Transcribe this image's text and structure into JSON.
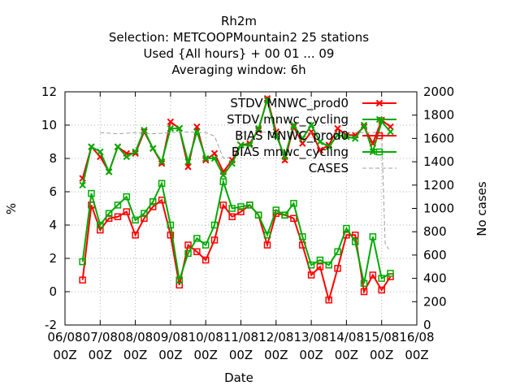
{
  "chart_data": {
    "type": "line",
    "title_lines": [
      "Rh2m",
      "Selection: METCOOPMountain2     25 stations",
      "Used {All hours} + 00 01 ... 09",
      "Averaging window:  6h"
    ],
    "xlabel": "Date",
    "ylabel": "%",
    "y2label": "No cases",
    "xlim": [
      0,
      10
    ],
    "ylim": [
      -2,
      12
    ],
    "y2lim": [
      0,
      2000
    ],
    "x_ticks": [
      {
        "v": 0,
        "l1": "06/08",
        "l2": "00Z"
      },
      {
        "v": 1,
        "l1": "07/08",
        "l2": "00Z"
      },
      {
        "v": 2,
        "l1": "08/08",
        "l2": "00Z"
      },
      {
        "v": 3,
        "l1": "09/08",
        "l2": "00Z"
      },
      {
        "v": 4,
        "l1": "10/08",
        "l2": "00Z"
      },
      {
        "v": 5,
        "l1": "11/08",
        "l2": "00Z"
      },
      {
        "v": 6,
        "l1": "12/08",
        "l2": "00Z"
      },
      {
        "v": 7,
        "l1": "13/08",
        "l2": "00Z"
      },
      {
        "v": 8,
        "l1": "14/08",
        "l2": "00Z"
      },
      {
        "v": 9,
        "l1": "15/08",
        "l2": "00Z"
      },
      {
        "v": 10,
        "l1": "16/08",
        "l2": "00Z"
      }
    ],
    "y_ticks": [
      "-2",
      "0",
      "2",
      "4",
      "6",
      "8",
      "10",
      "12"
    ],
    "y2_ticks": [
      "0",
      "200",
      "400",
      "600",
      "800",
      "1000",
      "1200",
      "1400",
      "1600",
      "1800",
      "2000"
    ],
    "grid": true,
    "legend_position": "top-right",
    "x": [
      0.5,
      0.75,
      1.0,
      1.25,
      1.5,
      1.75,
      2.0,
      2.25,
      2.5,
      2.75,
      3.0,
      3.25,
      3.5,
      3.75,
      4.0,
      4.25,
      4.5,
      4.75,
      5.0,
      5.25,
      5.5,
      5.75,
      6.0,
      6.25,
      6.5,
      6.75,
      7.0,
      7.25,
      7.5,
      7.75,
      8.0,
      8.25,
      8.5,
      8.75,
      9.0,
      9.25
    ],
    "series": [
      {
        "name": "STDV MNWC_prod0",
        "color": "#ff0000",
        "marker": "x",
        "axis": "y",
        "values": [
          6.8,
          8.7,
          8.1,
          7.2,
          8.7,
          8.3,
          8.3,
          9.6,
          8.6,
          7.7,
          10.2,
          9.8,
          7.5,
          9.9,
          7.9,
          8.3,
          7.2,
          7.9,
          8.8,
          8.9,
          9.7,
          11.6,
          9.6,
          7.9,
          9.9,
          8.9,
          9.6,
          8.5,
          8.8,
          9.8,
          9.4,
          9.4,
          9.9,
          8.9,
          10.3,
          9.9
        ]
      },
      {
        "name": "STDV mnwc_cycling",
        "color": "#00aa00",
        "marker": "x",
        "axis": "y",
        "values": [
          6.4,
          8.7,
          8.4,
          7.2,
          8.7,
          8.1,
          8.4,
          9.7,
          8.6,
          7.8,
          9.8,
          9.8,
          7.8,
          9.6,
          8.0,
          8.0,
          7.0,
          7.7,
          8.8,
          8.8,
          9.8,
          11.5,
          9.4,
          8.1,
          10.0,
          9.2,
          10.0,
          9.0,
          8.7,
          9.4,
          9.3,
          9.2,
          10.0,
          8.4,
          10.2,
          9.6
        ]
      },
      {
        "name": "BIAS MNWC_prod0",
        "color": "#ff0000",
        "marker": "square",
        "axis": "y",
        "values": [
          0.7,
          5.2,
          3.7,
          4.4,
          4.5,
          4.8,
          3.4,
          4.4,
          5.1,
          5.5,
          3.4,
          0.4,
          2.8,
          2.4,
          1.9,
          3.1,
          5.2,
          4.5,
          4.8,
          5.2,
          4.6,
          2.8,
          4.7,
          4.6,
          4.4,
          2.8,
          1.0,
          1.5,
          -0.5,
          1.4,
          3.4,
          3.4,
          0.0,
          1.0,
          0.1,
          0.9
        ]
      },
      {
        "name": "BIAS mnwc_cycling",
        "color": "#00aa00",
        "marker": "square",
        "axis": "y",
        "values": [
          1.8,
          5.9,
          4.0,
          4.7,
          5.2,
          5.7,
          4.3,
          4.7,
          5.4,
          6.5,
          4.0,
          0.7,
          2.3,
          3.2,
          2.8,
          4.0,
          6.6,
          5.0,
          5.1,
          5.2,
          4.6,
          3.4,
          4.9,
          4.6,
          5.3,
          3.3,
          1.6,
          1.9,
          1.6,
          2.4,
          3.8,
          3.0,
          0.5,
          3.3,
          0.8,
          1.1
        ]
      },
      {
        "name": "CASES",
        "color": "#a0a0a0",
        "dash": "5,3",
        "axis": "y2",
        "points": [
          [
            1.0,
            1650
          ],
          [
            1.5,
            1640
          ],
          [
            2.0,
            1650
          ],
          [
            2.5,
            1640
          ],
          [
            3.0,
            1650
          ],
          [
            3.5,
            1655
          ],
          [
            4.0,
            1650
          ],
          [
            4.25,
            1620
          ],
          [
            4.5,
            1430
          ],
          [
            4.75,
            1440
          ],
          [
            5.0,
            1650
          ],
          [
            5.5,
            1655
          ],
          [
            6.0,
            1650
          ],
          [
            6.5,
            1650
          ],
          [
            7.0,
            1650
          ],
          [
            7.5,
            1650
          ],
          [
            8.0,
            1650
          ],
          [
            8.5,
            1650
          ],
          [
            9.0,
            1650
          ],
          [
            9.1,
            700
          ],
          [
            9.2,
            650
          ]
        ]
      }
    ]
  }
}
